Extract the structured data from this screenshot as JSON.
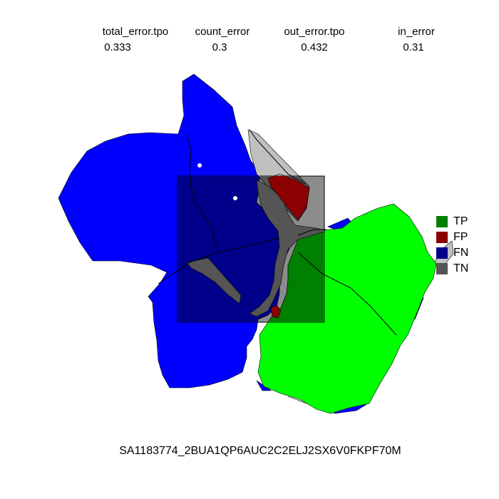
{
  "metrics": [
    {
      "label": "total_error.tpo",
      "value": "0.333"
    },
    {
      "label": "count_error",
      "value": "0.3"
    },
    {
      "label": "out_error.tpo",
      "value": "0.432"
    },
    {
      "label": "in_error",
      "value": "0.31"
    }
  ],
  "legend": [
    {
      "label": "TP",
      "color": "#008000"
    },
    {
      "label": "FP",
      "color": "#8B0000"
    },
    {
      "label": "FN",
      "color": "#00008B"
    },
    {
      "label": "TN",
      "color": "#555555"
    }
  ],
  "map_colors": {
    "fn_outside": "#0000FF",
    "tp_outside": "#00FF00",
    "fp_outside": "#C0C0C0",
    "fn_inside": "#00008B",
    "tp_inside": "#008000",
    "fp_inside": "#8B0000",
    "tn_inside": "#555555"
  },
  "sample_id": "SA1183774_2BUA1QP6AUC2C2ELJ2SX6V0FKPF70M"
}
